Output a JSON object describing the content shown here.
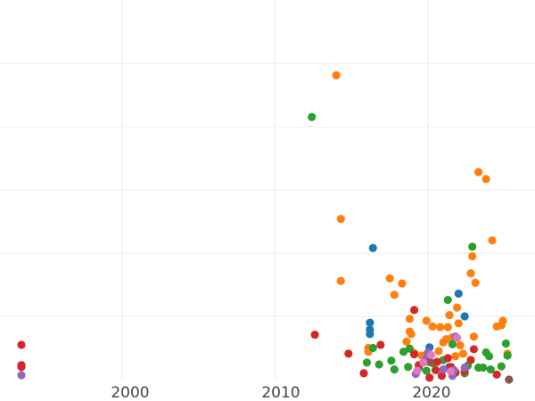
{
  "chart_data": {
    "type": "scatter",
    "title": "",
    "xlabel": "",
    "ylabel": "",
    "xlim": [
      1992,
      2027
    ],
    "ylim": [
      0,
      60
    ],
    "x_ticks": [
      2000,
      2010,
      2020
    ],
    "x_tick_labels": [
      "2000",
      "2010",
      "2020"
    ],
    "y_gridlines": [
      10,
      20,
      30,
      40,
      50
    ],
    "grid": true,
    "legend": "none",
    "colors": {
      "blue": "#1f77b4",
      "orange": "#ff7f0e",
      "green": "#2ca02c",
      "red": "#d62728",
      "purple": "#9467bd",
      "brown": "#8c564b",
      "pink": "#e377c2"
    },
    "series": [
      {
        "color": "blue",
        "points": [
          [
            2016.2,
            9.0
          ],
          [
            2016.2,
            7.9
          ],
          [
            2016.2,
            7.2
          ],
          [
            2016.4,
            20.8
          ],
          [
            2020.1,
            5.1
          ],
          [
            2021.4,
            2.0
          ],
          [
            2022.0,
            13.6
          ],
          [
            2022.4,
            10.0
          ]
        ]
      },
      {
        "color": "orange",
        "points": [
          [
            2014.0,
            48.1
          ],
          [
            2014.3,
            25.4
          ],
          [
            2014.3,
            15.6
          ],
          [
            2016.1,
            5.0
          ],
          [
            2016.1,
            4.4
          ],
          [
            2017.5,
            16.0
          ],
          [
            2017.8,
            13.4
          ],
          [
            2018.3,
            15.2
          ],
          [
            2018.6,
            6.0
          ],
          [
            2018.8,
            9.6
          ],
          [
            2018.8,
            7.6
          ],
          [
            2018.9,
            7.2
          ],
          [
            2019.1,
            4.2
          ],
          [
            2019.6,
            3.8
          ],
          [
            2019.9,
            9.3
          ],
          [
            2020.3,
            8.4
          ],
          [
            2020.7,
            4.5
          ],
          [
            2020.8,
            8.3
          ],
          [
            2021.0,
            5.9
          ],
          [
            2021.2,
            6.4
          ],
          [
            2021.3,
            8.3
          ],
          [
            2021.4,
            10.2
          ],
          [
            2021.6,
            6.7
          ],
          [
            2021.8,
            3.7
          ],
          [
            2021.9,
            11.4
          ],
          [
            2022.0,
            8.9
          ],
          [
            2022.1,
            5.4
          ],
          [
            2022.3,
            4.1
          ],
          [
            2022.8,
            16.8
          ],
          [
            2022.9,
            19.5
          ],
          [
            2023.0,
            6.8
          ],
          [
            2023.1,
            15.3
          ],
          [
            2023.3,
            32.8
          ],
          [
            2023.8,
            31.7
          ],
          [
            2024.2,
            22.0
          ],
          [
            2024.5,
            8.4
          ],
          [
            2024.8,
            8.6
          ],
          [
            2024.9,
            9.3
          ],
          [
            2025.2,
            4.1
          ]
        ]
      },
      {
        "color": "green",
        "points": [
          [
            2012.4,
            41.5
          ],
          [
            2016.0,
            2.7
          ],
          [
            2016.4,
            5.0
          ],
          [
            2016.8,
            2.4
          ],
          [
            2017.6,
            3.0
          ],
          [
            2017.8,
            1.6
          ],
          [
            2018.4,
            4.4
          ],
          [
            2018.7,
            2.0
          ],
          [
            2018.8,
            4.9
          ],
          [
            2019.4,
            1.8
          ],
          [
            2019.9,
            1.4
          ],
          [
            2020.3,
            2.6
          ],
          [
            2021.0,
            3.1
          ],
          [
            2021.3,
            12.6
          ],
          [
            2021.6,
            5.6
          ],
          [
            2021.8,
            1.2
          ],
          [
            2022.4,
            1.0
          ],
          [
            2022.6,
            2.2
          ],
          [
            2022.9,
            21.0
          ],
          [
            2023.3,
            1.9
          ],
          [
            2023.6,
            1.9
          ],
          [
            2023.8,
            4.3
          ],
          [
            2024.0,
            3.7
          ],
          [
            2024.1,
            1.6
          ],
          [
            2024.8,
            2.1
          ],
          [
            2025.1,
            5.7
          ],
          [
            2025.2,
            3.8
          ]
        ]
      },
      {
        "color": "red",
        "points": [
          [
            1993.4,
            5.5
          ],
          [
            1993.4,
            2.3
          ],
          [
            1993.4,
            2.0
          ],
          [
            2012.6,
            7.1
          ],
          [
            2014.8,
            4.1
          ],
          [
            2015.8,
            1.0
          ],
          [
            2016.9,
            5.5
          ],
          [
            2019.1,
            4.0
          ],
          [
            2019.1,
            11.0
          ],
          [
            2019.4,
            2.3
          ],
          [
            2020.1,
            0.3
          ],
          [
            2020.5,
            1.5
          ],
          [
            2020.6,
            2.8
          ],
          [
            2020.9,
            0.6
          ],
          [
            2021.3,
            3.4
          ],
          [
            2021.5,
            2.0
          ],
          [
            2021.8,
            1.1
          ],
          [
            2022.4,
            1.3
          ],
          [
            2022.8,
            3.1
          ],
          [
            2023.0,
            4.8
          ],
          [
            2024.5,
            0.8
          ]
        ]
      },
      {
        "color": "purple",
        "points": [
          [
            1993.4,
            0.7
          ],
          [
            2019.2,
            0.9
          ],
          [
            2019.9,
            3.4
          ],
          [
            2020.0,
            4.3
          ],
          [
            2021.0,
            1.6
          ],
          [
            2021.6,
            0.6
          ],
          [
            2021.7,
            1.5
          ],
          [
            2021.8,
            6.8
          ],
          [
            2022.4,
            1.9
          ]
        ]
      },
      {
        "color": "brown",
        "points": [
          [
            2020.1,
            2.8
          ],
          [
            2025.3,
            0.0
          ]
        ]
      },
      {
        "color": "pink",
        "points": [
          [
            2019.3,
            1.4
          ],
          [
            2019.7,
            2.7
          ],
          [
            2020.2,
            3.9
          ],
          [
            2021.5,
            1.3
          ],
          [
            2021.9,
            6.6
          ]
        ]
      }
    ]
  }
}
